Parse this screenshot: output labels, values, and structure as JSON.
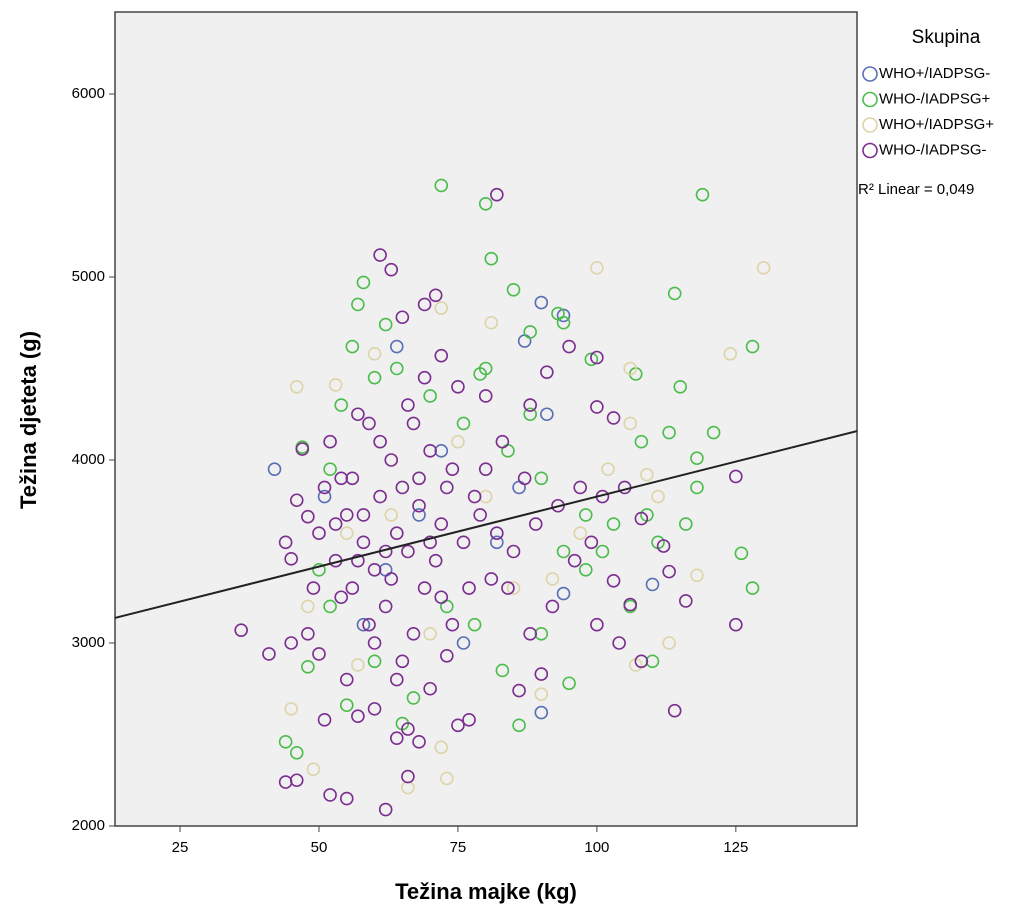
{
  "chart_data": {
    "type": "scatter",
    "x_label": "Težina majke (kg)",
    "y_label": "Težina djeteta (g)",
    "legend_title": "Skupina",
    "legend": "right",
    "fit_label": "R² Linear = 0,049",
    "xlim": [
      13.3,
      146.8
    ],
    "ylim": [
      2000,
      6448
    ],
    "xticks": [
      25,
      50,
      75,
      100,
      125
    ],
    "yticks": [
      2000,
      3000,
      4000,
      5000,
      6000
    ],
    "grid": false,
    "background": "#f0f0f0",
    "fit": {
      "color": "#222222",
      "x": [
        13.3,
        146.8
      ],
      "values": [
        3137,
        4158
      ]
    },
    "series": [
      {
        "name": "WHO+/IADPSG-",
        "color": "#5a6fb5",
        "x": [
          42,
          64,
          90,
          94,
          87,
          91,
          110,
          94,
          90,
          76,
          51,
          58,
          68,
          82,
          86,
          72,
          62
        ],
        "values": [
          3950,
          4620,
          4860,
          4790,
          4650,
          4250,
          3320,
          3270,
          2620,
          3000,
          3800,
          3100,
          3700,
          3550,
          3850,
          4050,
          3400
        ]
      },
      {
        "name": "WHO-/IADPSG+",
        "color": "#4cbd4c",
        "x": [
          72,
          80,
          119,
          81,
          58,
          57,
          85,
          114,
          93,
          128,
          62,
          56,
          94,
          115,
          107,
          121,
          113,
          108,
          118,
          118,
          116,
          126,
          128,
          110,
          106,
          95,
          86,
          65,
          55,
          46,
          44,
          48,
          50,
          52,
          54,
          60,
          64,
          70,
          76,
          80,
          84,
          88,
          90,
          94,
          98,
          101,
          103,
          109,
          111,
          99,
          98,
          90,
          83,
          78,
          73,
          67,
          60,
          52,
          47,
          79,
          88
        ],
        "values": [
          5500,
          5400,
          5450,
          5100,
          4970,
          4850,
          4930,
          4910,
          4800,
          4620,
          4740,
          4620,
          4750,
          4400,
          4470,
          4150,
          4150,
          4100,
          4010,
          3850,
          3650,
          3490,
          3300,
          2900,
          3200,
          2780,
          2550,
          2560,
          2660,
          2400,
          2460,
          2870,
          3400,
          3950,
          4300,
          4450,
          4500,
          4350,
          4200,
          4500,
          4050,
          4250,
          3900,
          3500,
          3700,
          3500,
          3650,
          3700,
          3550,
          4550,
          3400,
          3050,
          2850,
          3100,
          3200,
          2700,
          2900,
          3200,
          4070,
          4470,
          4700
        ]
      },
      {
        "name": "WHO+/IADPSG+",
        "color": "#ddd4a8",
        "x": [
          100,
          130,
          124,
          46,
          53,
          60,
          72,
          81,
          106,
          106,
          109,
          111,
          113,
          118,
          107,
          90,
          72,
          73,
          66,
          49,
          45,
          57,
          63,
          75,
          85,
          92,
          97,
          102,
          88,
          80,
          70,
          55,
          48
        ],
        "values": [
          5050,
          5050,
          4580,
          4400,
          4410,
          4580,
          4830,
          4750,
          4500,
          4200,
          3920,
          3800,
          3000,
          3370,
          2880,
          2720,
          2430,
          2260,
          2210,
          2310,
          2640,
          2880,
          3700,
          4100,
          3300,
          3350,
          3600,
          3950,
          4300,
          3800,
          3050,
          3600,
          3200
        ]
      },
      {
        "name": "WHO-/IADPSG-",
        "color": "#7b2e8f",
        "x": [
          36,
          41,
          44,
          46,
          52,
          55,
          62,
          66,
          61,
          63,
          65,
          69,
          71,
          72,
          82,
          80,
          88,
          91,
          95,
          100,
          100,
          103,
          105,
          108,
          112,
          113,
          114,
          116,
          125,
          125,
          103,
          108,
          106,
          104,
          100,
          96,
          92,
          90,
          88,
          86,
          84,
          82,
          80,
          78,
          77,
          75,
          73,
          70,
          68,
          66,
          64,
          60,
          57,
          55,
          51,
          50,
          48,
          45,
          44,
          45,
          46,
          47,
          48,
          49,
          50,
          51,
          52,
          53,
          54,
          55,
          56,
          57,
          58,
          59,
          60,
          61,
          62,
          63,
          64,
          65,
          66,
          67,
          68,
          69,
          70,
          71,
          72,
          73,
          74,
          75,
          76,
          77,
          79,
          81,
          83,
          85,
          87,
          89,
          93,
          97,
          99,
          101,
          62,
          58,
          60,
          64,
          66,
          68,
          56,
          54,
          53,
          61,
          63,
          67,
          69,
          59,
          57,
          65,
          70,
          72,
          74
        ],
        "values": [
          3070,
          2940,
          2240,
          2250,
          2170,
          2150,
          2090,
          2270,
          5120,
          5040,
          4780,
          4850,
          4900,
          4570,
          5450,
          4350,
          4300,
          4480,
          4620,
          4560,
          4290,
          4230,
          3850,
          3680,
          3530,
          3390,
          2630,
          3230,
          3910,
          3100,
          3340,
          2900,
          3210,
          3000,
          3100,
          3450,
          3200,
          2830,
          3050,
          2740,
          3300,
          3600,
          3950,
          3800,
          2580,
          2550,
          2930,
          2750,
          2460,
          2530,
          2480,
          2640,
          2600,
          2800,
          2580,
          2940,
          3050,
          3000,
          3550,
          3460,
          3780,
          4060,
          3690,
          3300,
          3600,
          3850,
          4100,
          3450,
          3250,
          3700,
          3900,
          4250,
          3550,
          3100,
          3400,
          3800,
          3200,
          4000,
          3600,
          2900,
          3500,
          4200,
          3750,
          3300,
          4050,
          3450,
          3650,
          3850,
          3100,
          4400,
          3550,
          3300,
          3700,
          3350,
          4100,
          3500,
          3900,
          3650,
          3750,
          3850,
          3550,
          3800,
          3500,
          3700,
          3000,
          2800,
          4300,
          3900,
          3300,
          3900,
          3650,
          4100,
          3350,
          3050,
          4450,
          4200,
          3450,
          3850,
          3550,
          3250,
          3950
        ]
      }
    ]
  }
}
